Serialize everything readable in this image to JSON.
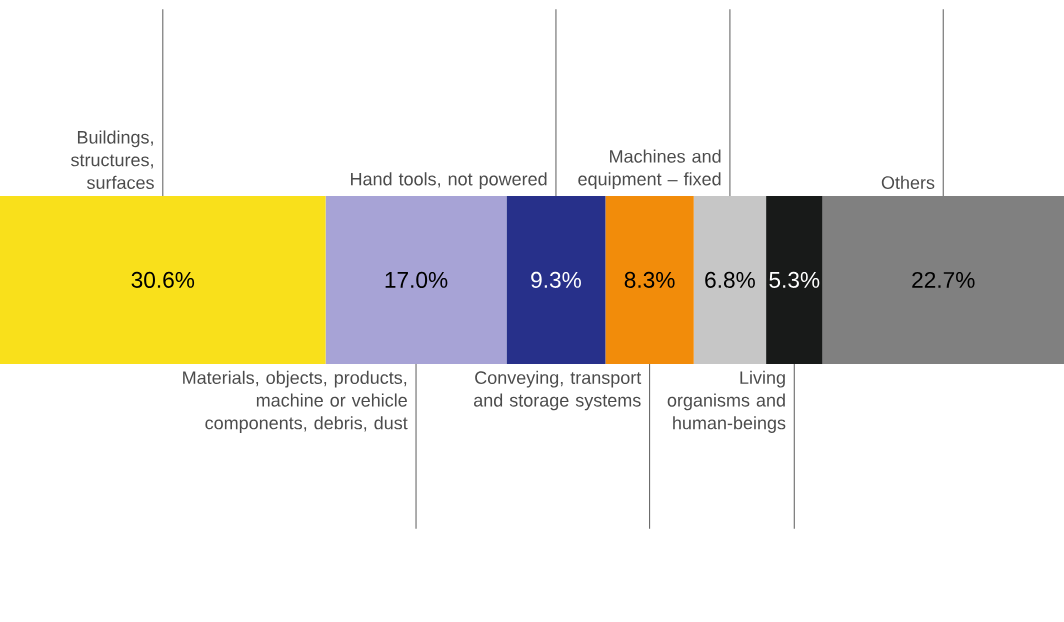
{
  "chart_data": {
    "type": "bar",
    "orientation": "horizontal",
    "stacked": true,
    "categories": [
      null
    ],
    "xlim": [
      0,
      100
    ],
    "tick_labels": false,
    "series": [
      {
        "name": "Buildings, structures, surfaces",
        "color": "#f9e01b",
        "values": [
          30.6
        ],
        "value_labels": [
          "30.6%"
        ]
      },
      {
        "name": "Materials, objects, products, machine or vehicle components, debris, dust",
        "color": "#a7a3d6",
        "values": [
          17.0
        ],
        "value_labels": [
          "17.0%"
        ]
      },
      {
        "name": "Hand tools, not powered",
        "color": "#27308a",
        "values": [
          9.3
        ],
        "value_labels": [
          "9.3%"
        ]
      },
      {
        "name": "Conveying, transport and storage systems",
        "color": "#f28c0a",
        "values": [
          8.3
        ],
        "value_labels": [
          "8.3%"
        ]
      },
      {
        "name": "Machines and equipment – fixed",
        "color": "#c6c6c6",
        "values": [
          6.8
        ],
        "value_labels": [
          "6.8%"
        ]
      },
      {
        "name": "Living organisms and human-beings",
        "color": "#181a19",
        "values": [
          5.3
        ],
        "value_labels": [
          "5.3%"
        ]
      },
      {
        "name": "Others",
        "color": "#808080",
        "values": [
          22.7
        ],
        "value_labels": [
          "22.7%"
        ]
      }
    ]
  }
}
